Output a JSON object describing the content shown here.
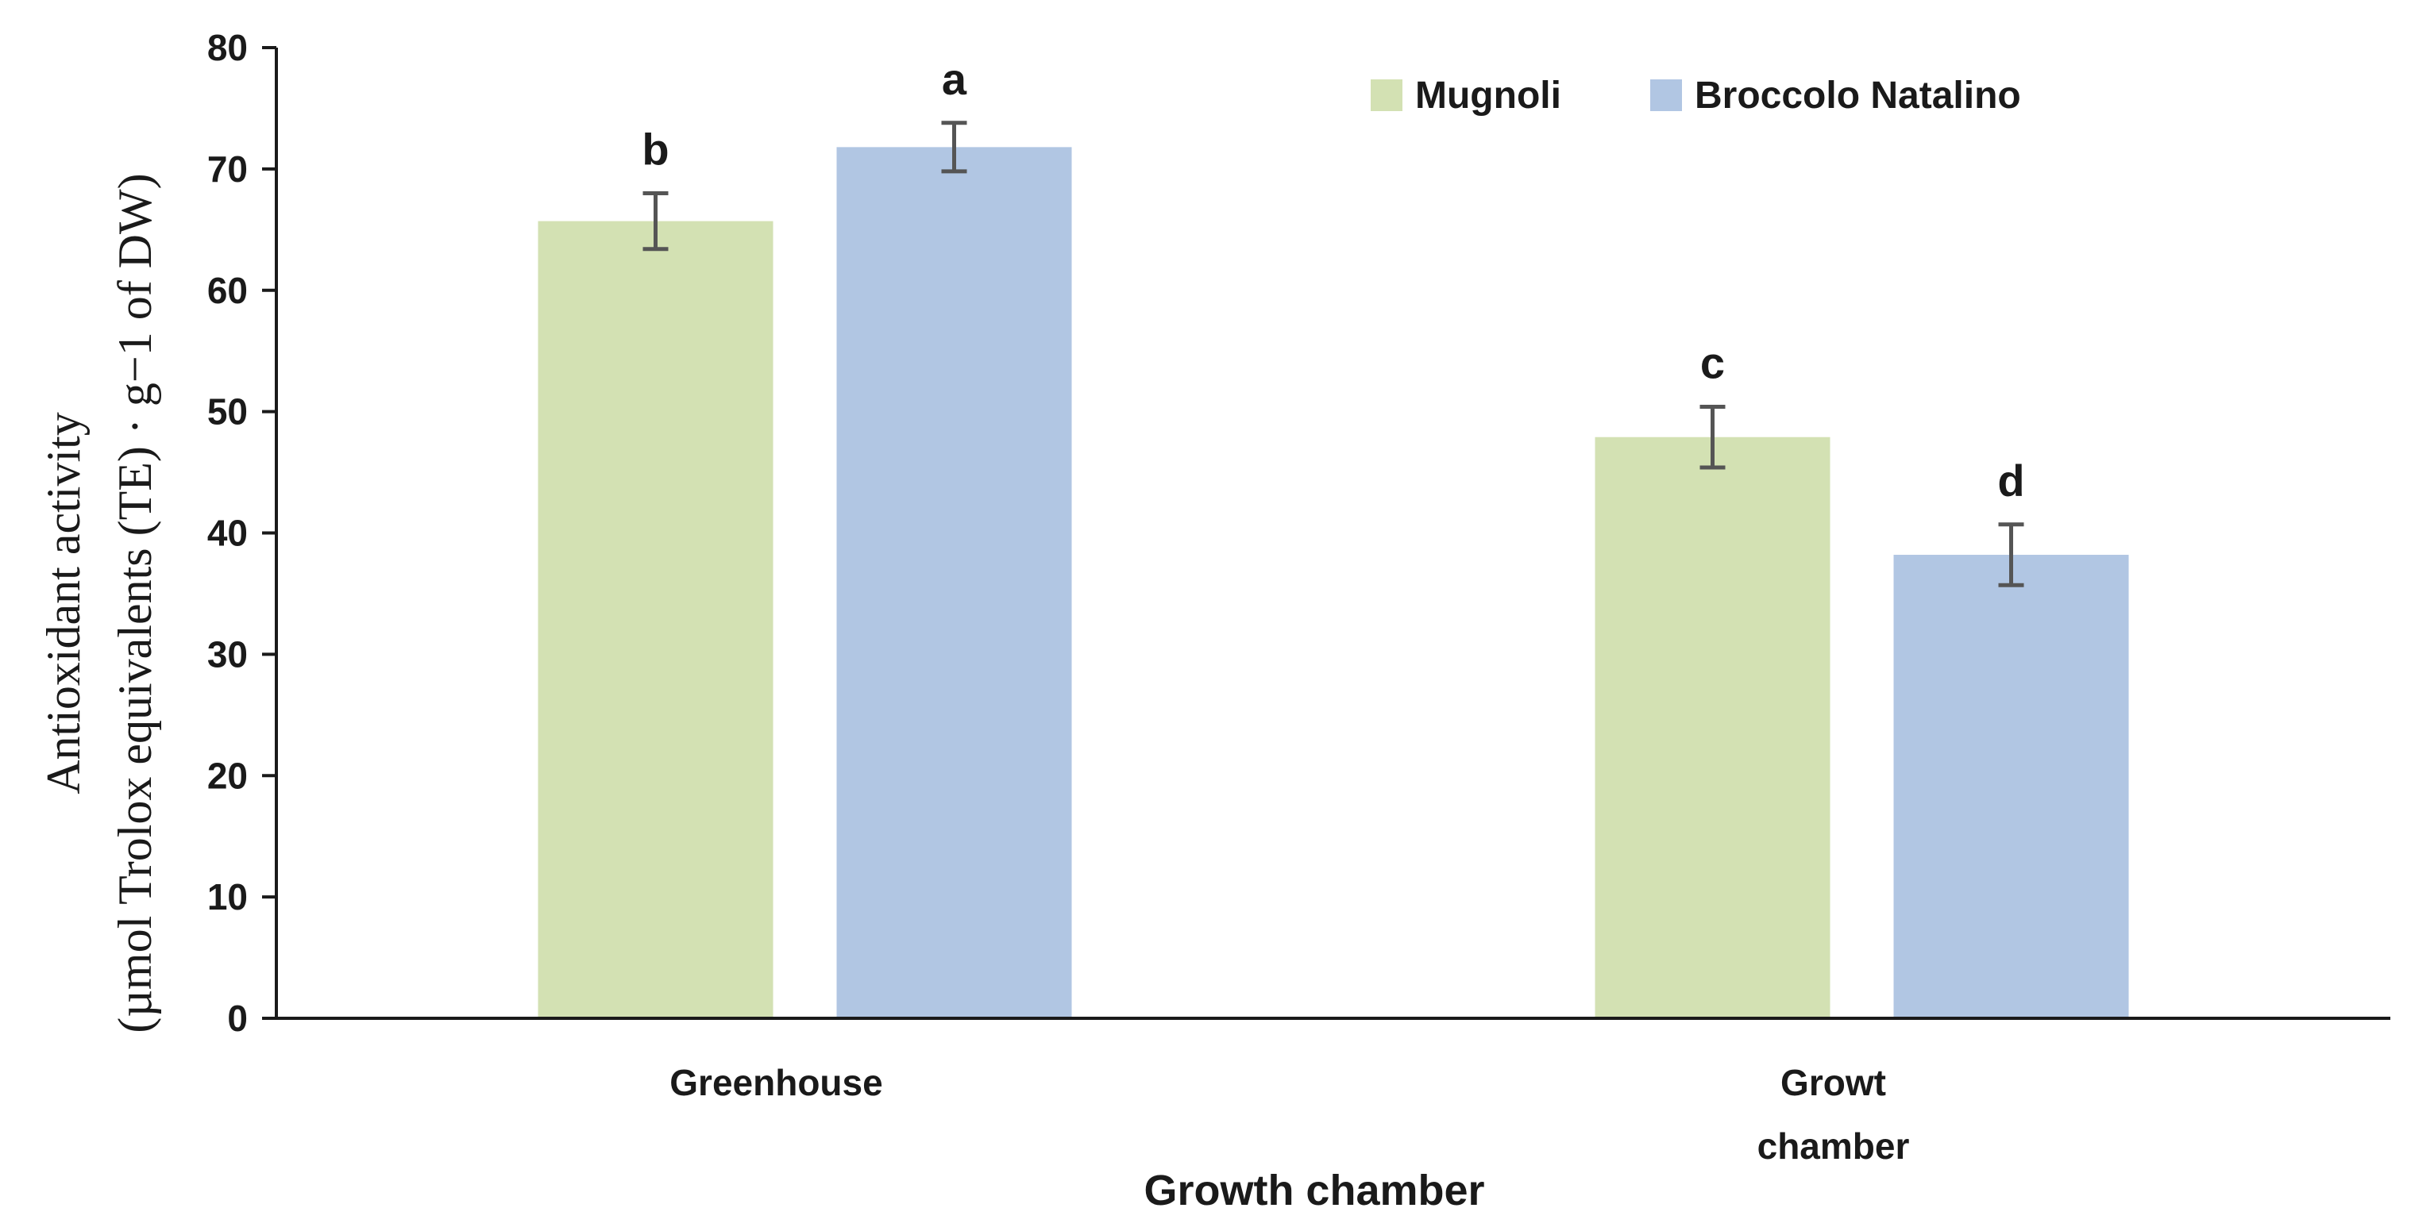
{
  "chart_data": {
    "type": "bar",
    "title": "",
    "xlabel": "Growth chamber",
    "ylabel_line1": "Antioxidant activity",
    "ylabel_line2": "(µmol Trolox equivalents (TE) · g−1 of DW)",
    "ylim": [
      0,
      80
    ],
    "yticks": [
      0,
      10,
      20,
      30,
      40,
      50,
      60,
      70,
      80
    ],
    "grid": false,
    "legend_position": "top-right",
    "categories": [
      {
        "lines": [
          "Greenhouse"
        ]
      },
      {
        "lines": [
          "Growt",
          "chamber"
        ]
      }
    ],
    "series": [
      {
        "name": "Mugnoli",
        "color": "#d3e1b3",
        "values": [
          65.7,
          47.9
        ],
        "errors": [
          2.3,
          2.5
        ],
        "letters": [
          "b",
          "c"
        ]
      },
      {
        "name": "Broccolo Natalino",
        "color": "#b1c6e3",
        "values": [
          71.8,
          38.2
        ],
        "errors": [
          2.0,
          2.5
        ],
        "letters": [
          "a",
          "d"
        ]
      }
    ],
    "error_bar_color": "#555555",
    "axis_color": "#1a1a1a"
  }
}
